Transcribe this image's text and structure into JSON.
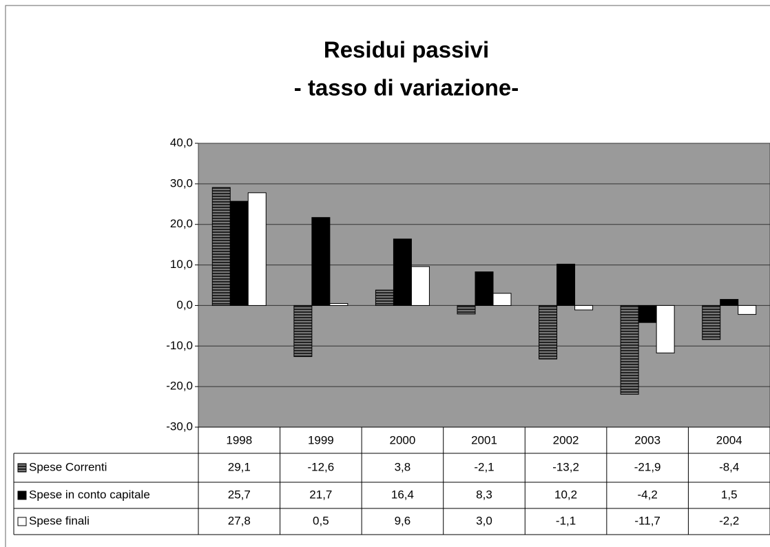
{
  "chart_data": {
    "type": "bar",
    "title": "Residui passivi",
    "subtitle": "- tasso di variazione-",
    "categories": [
      "1998",
      "1999",
      "2000",
      "2001",
      "2002",
      "2003",
      "2004"
    ],
    "series": [
      {
        "name": "Spese Correnti",
        "color": "#4a4a4a",
        "values": [
          29.1,
          -12.6,
          3.8,
          -2.1,
          -13.2,
          -21.9,
          -8.4
        ],
        "value_labels": [
          "29,1",
          "-12,6",
          "3,8",
          "-2,1",
          "-13,2",
          "-21,9",
          "-8,4"
        ]
      },
      {
        "name": "Spese in conto capitale",
        "color": "#000000",
        "values": [
          25.7,
          21.7,
          16.4,
          8.3,
          10.2,
          -4.2,
          1.5
        ],
        "value_labels": [
          "25,7",
          "21,7",
          "16,4",
          "8,3",
          "10,2",
          "-4,2",
          "1,5"
        ]
      },
      {
        "name": "Spese finali",
        "color": "#ffffff",
        "values": [
          27.8,
          0.5,
          9.6,
          3.0,
          -1.1,
          -11.7,
          -2.2
        ],
        "value_labels": [
          "27,8",
          "0,5",
          "9,6",
          "3,0",
          "-1,1",
          "-11,7",
          "-2,2"
        ]
      }
    ],
    "ylim": [
      -30,
      40
    ],
    "yticks": [
      {
        "value": -30,
        "label": "-30,0"
      },
      {
        "value": -20,
        "label": "-20,0"
      },
      {
        "value": -10,
        "label": "-10,0"
      },
      {
        "value": 0,
        "label": "0,0"
      },
      {
        "value": 10,
        "label": "10,0"
      },
      {
        "value": 20,
        "label": "20,0"
      },
      {
        "value": 30,
        "label": "30,0"
      },
      {
        "value": 40,
        "label": "40,0"
      }
    ],
    "grid": true
  }
}
